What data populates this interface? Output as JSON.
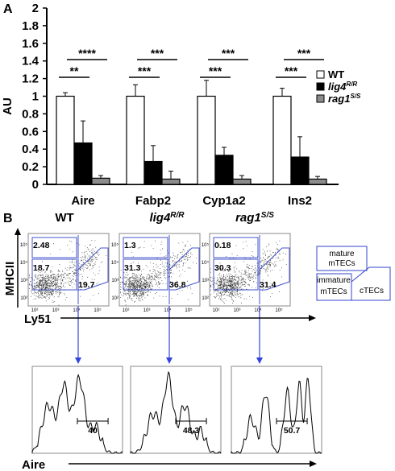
{
  "panel_a": {
    "letter": "A"
  },
  "panel_b": {
    "letter": "B"
  },
  "chart_data": [
    {
      "type": "bar",
      "title": "",
      "ylabel": "AU",
      "ylim": [
        0,
        2
      ],
      "yticks": [
        "0",
        "0.2",
        "0.4",
        "0.6",
        "0.8",
        "1",
        "1.2",
        "1.4",
        "1.6",
        "1.8",
        "2"
      ],
      "categories": [
        "Aire",
        "Fabp2",
        "Cyp1a2",
        "Ins2"
      ],
      "series": [
        {
          "name": "WT",
          "color": "#ffffff",
          "values": [
            1.0,
            1.0,
            1.0,
            1.0
          ],
          "errors": [
            0.04,
            0.13,
            0.18,
            0.09
          ]
        },
        {
          "name": "lig4",
          "superscript": "R/R",
          "color": "#000000",
          "values": [
            0.47,
            0.26,
            0.33,
            0.31
          ],
          "errors": [
            0.25,
            0.18,
            0.09,
            0.23
          ]
        },
        {
          "name": "rag1",
          "superscript": "S/S",
          "color": "#8c8c8c",
          "values": [
            0.07,
            0.06,
            0.06,
            0.06
          ],
          "errors": [
            0.03,
            0.09,
            0.04,
            0.03
          ]
        }
      ],
      "significance": [
        {
          "category": "Aire",
          "near": "**",
          "far": "****"
        },
        {
          "category": "Fabp2",
          "near": "***",
          "far": "***"
        },
        {
          "category": "Cyp1a2",
          "near": "***",
          "far": "***"
        },
        {
          "category": "Ins2",
          "near": "***",
          "far": "***"
        }
      ],
      "legend_position": "right",
      "grid": false
    }
  ],
  "facs": {
    "y_axis_label": "MHCII",
    "x_axis_label": "Ly51",
    "axis_ticks": [
      "10²",
      "10³",
      "10⁴",
      "10⁵"
    ],
    "plots": [
      {
        "title": "WT",
        "title_sup": "",
        "top": "2.48",
        "mid": "18.7",
        "right": "19.7"
      },
      {
        "title": "lig4",
        "title_sup": "R/R",
        "top": "1.3",
        "mid": "31.3",
        "right": "36.8"
      },
      {
        "title": "rag1",
        "title_sup": "S/S",
        "top": "0.18",
        "mid": "30.3",
        "right": "31.4"
      }
    ],
    "gate_legend": {
      "mature_line1": "mature",
      "mature_line2": "mTECs",
      "immature_line1": "immature",
      "immature_line2": "mTECs",
      "ctecs": "cTECs"
    }
  },
  "histograms": {
    "x_axis_label": "Aire",
    "values": [
      "40",
      "48.3",
      "50.7"
    ]
  }
}
